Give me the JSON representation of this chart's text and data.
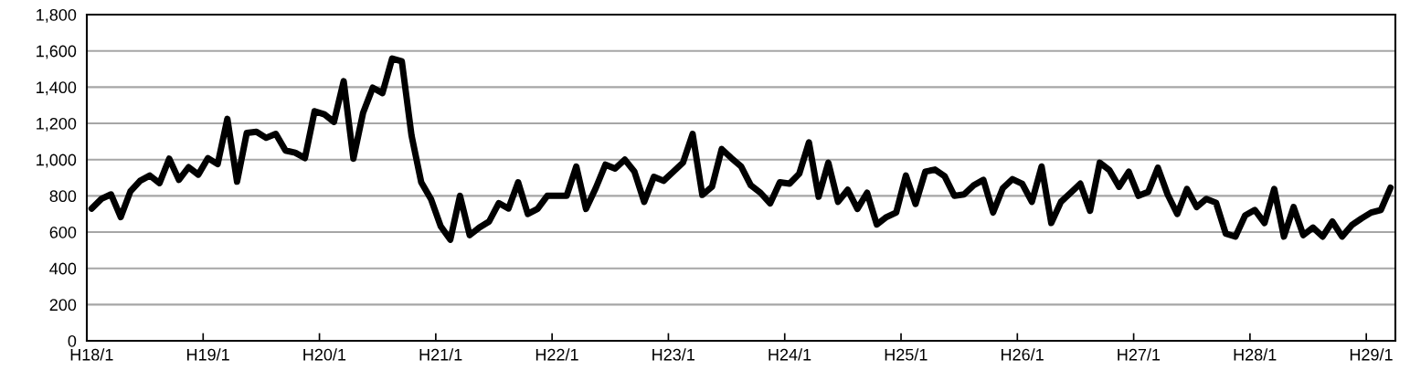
{
  "chart_data": {
    "type": "line",
    "categories": [
      "H18/1",
      null,
      null,
      null,
      null,
      null,
      null,
      null,
      null,
      null,
      null,
      null,
      "H19/1",
      null,
      null,
      null,
      null,
      null,
      null,
      null,
      null,
      null,
      null,
      null,
      "H20/1",
      null,
      null,
      null,
      null,
      null,
      null,
      null,
      null,
      null,
      null,
      null,
      "H21/1",
      null,
      null,
      null,
      null,
      null,
      null,
      null,
      null,
      null,
      null,
      null,
      "H22/1",
      null,
      null,
      null,
      null,
      null,
      null,
      null,
      null,
      null,
      null,
      null,
      "H23/1",
      null,
      null,
      null,
      null,
      null,
      null,
      null,
      null,
      null,
      null,
      null,
      "H24/1",
      null,
      null,
      null,
      null,
      null,
      null,
      null,
      null,
      null,
      null,
      null,
      "H25/1",
      null,
      null,
      null,
      null,
      null,
      null,
      null,
      null,
      null,
      null,
      null,
      "H26/1",
      null,
      null,
      null,
      null,
      null,
      null,
      null,
      null,
      null,
      null,
      null,
      "H27/1",
      null,
      null,
      null,
      null,
      null,
      null,
      null,
      null,
      null,
      null,
      null,
      "H28/1",
      null,
      null,
      null,
      null,
      null,
      null,
      null,
      null,
      null,
      null,
      null,
      "H29/1",
      null,
      null
    ],
    "series": [
      {
        "color": "#000000",
        "values": [
          730,
          783,
          808,
          683,
          825,
          883,
          912,
          870,
          1005,
          888,
          958,
          917,
          1008,
          975,
          1225,
          878,
          1147,
          1153,
          1120,
          1142,
          1050,
          1038,
          1008,
          1267,
          1250,
          1208,
          1433,
          1005,
          1258,
          1397,
          1367,
          1558,
          1542,
          1133,
          875,
          783,
          633,
          558,
          800,
          583,
          625,
          658,
          760,
          730,
          875,
          700,
          728,
          800,
          800,
          800,
          962,
          728,
          842,
          972,
          950,
          1000,
          933,
          767,
          905,
          883,
          933,
          983,
          1142,
          805,
          850,
          1058,
          1008,
          962,
          858,
          817,
          758,
          875,
          867,
          922,
          1095,
          795,
          983,
          767,
          833,
          728,
          817,
          642,
          683,
          708,
          912,
          755,
          933,
          945,
          908,
          800,
          808,
          858,
          888,
          708,
          842,
          892,
          867,
          767,
          962,
          650,
          767,
          817,
          867,
          717,
          983,
          942,
          850,
          933,
          800,
          822,
          955,
          808,
          700,
          838,
          738,
          783,
          762,
          592,
          575,
          692,
          722,
          650,
          838,
          575,
          738,
          583,
          625,
          575,
          658,
          575,
          638,
          675,
          708,
          722,
          845
        ]
      }
    ],
    "ylim": [
      0,
      1800
    ],
    "yticks": [
      0,
      200,
      400,
      600,
      800,
      {
        "value": 1000,
        "label": "1,000"
      },
      {
        "value": 1200,
        "label": "1,200"
      },
      {
        "value": 1400,
        "label": "1,400"
      },
      {
        "value": 1600,
        "label": "1,600"
      },
      {
        "value": 1800,
        "label": "1,800"
      }
    ],
    "grid": "y",
    "marker": "none",
    "line_style": "solid"
  }
}
